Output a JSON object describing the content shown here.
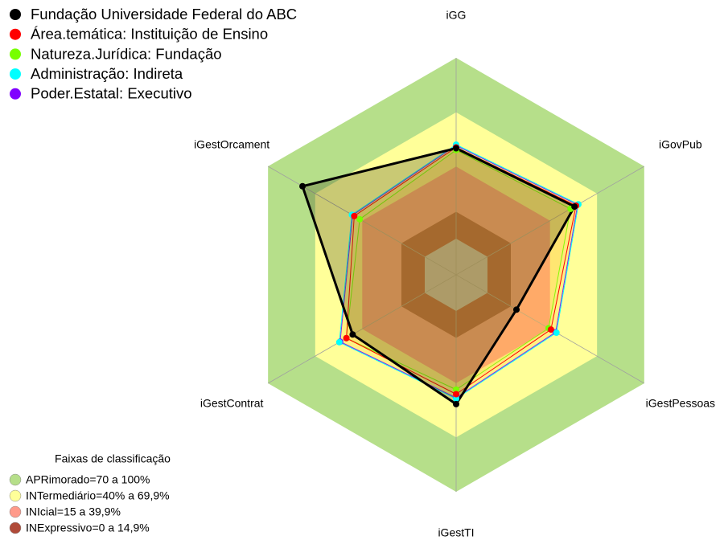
{
  "chart_data": {
    "type": "radar",
    "categories": [
      "iGG",
      "iGovPub",
      "iGestPessoas",
      "iGestTI",
      "iGestContrat",
      "iGestOrcament"
    ],
    "ylim": [
      -20,
      100
    ],
    "series": [
      {
        "name": "Fundação Universidade Federal do ABC",
        "color": "#000000",
        "values": [
          50,
          55.5,
          18.5,
          51.5,
          46,
          78
        ]
      },
      {
        "name": "Área.temática: Instituição de Ensino",
        "color": "#ff0000",
        "values": [
          50.5,
          56.5,
          40.5,
          46,
          50,
          45
        ]
      },
      {
        "name": "Natureza.Jurídica: Fundação",
        "color": "#77ff00",
        "values": [
          49,
          53,
          39,
          43.5,
          50,
          41.5
        ]
      },
      {
        "name": "Administração: Indireta",
        "color": "#00ffff",
        "values": [
          52,
          58,
          44,
          48.5,
          54.5,
          46.5
        ]
      },
      {
        "name": "Poder.Estatal: Executivo",
        "color": "#8000ff",
        "values": [
          51.5,
          57.5,
          43.5,
          48,
          54,
          46
        ]
      }
    ],
    "bands_title": "Faixas de classificação",
    "bands": [
      {
        "label": "APRimorado=70 a 100%",
        "color": "#b6df8a",
        "from": 70,
        "to": 100
      },
      {
        "label": "INTermediário=40% a 69,9%",
        "color": "#ffff99",
        "from": 40,
        "to": 69.9
      },
      {
        "label": "INIcial=15 a 39,9%",
        "color": "#ff9a8a",
        "from": 15,
        "to": 39.9
      },
      {
        "label": "INExpressivo=0 a 14,9%",
        "color": "#b04a38",
        "from": 0,
        "to": 14.9
      }
    ]
  }
}
